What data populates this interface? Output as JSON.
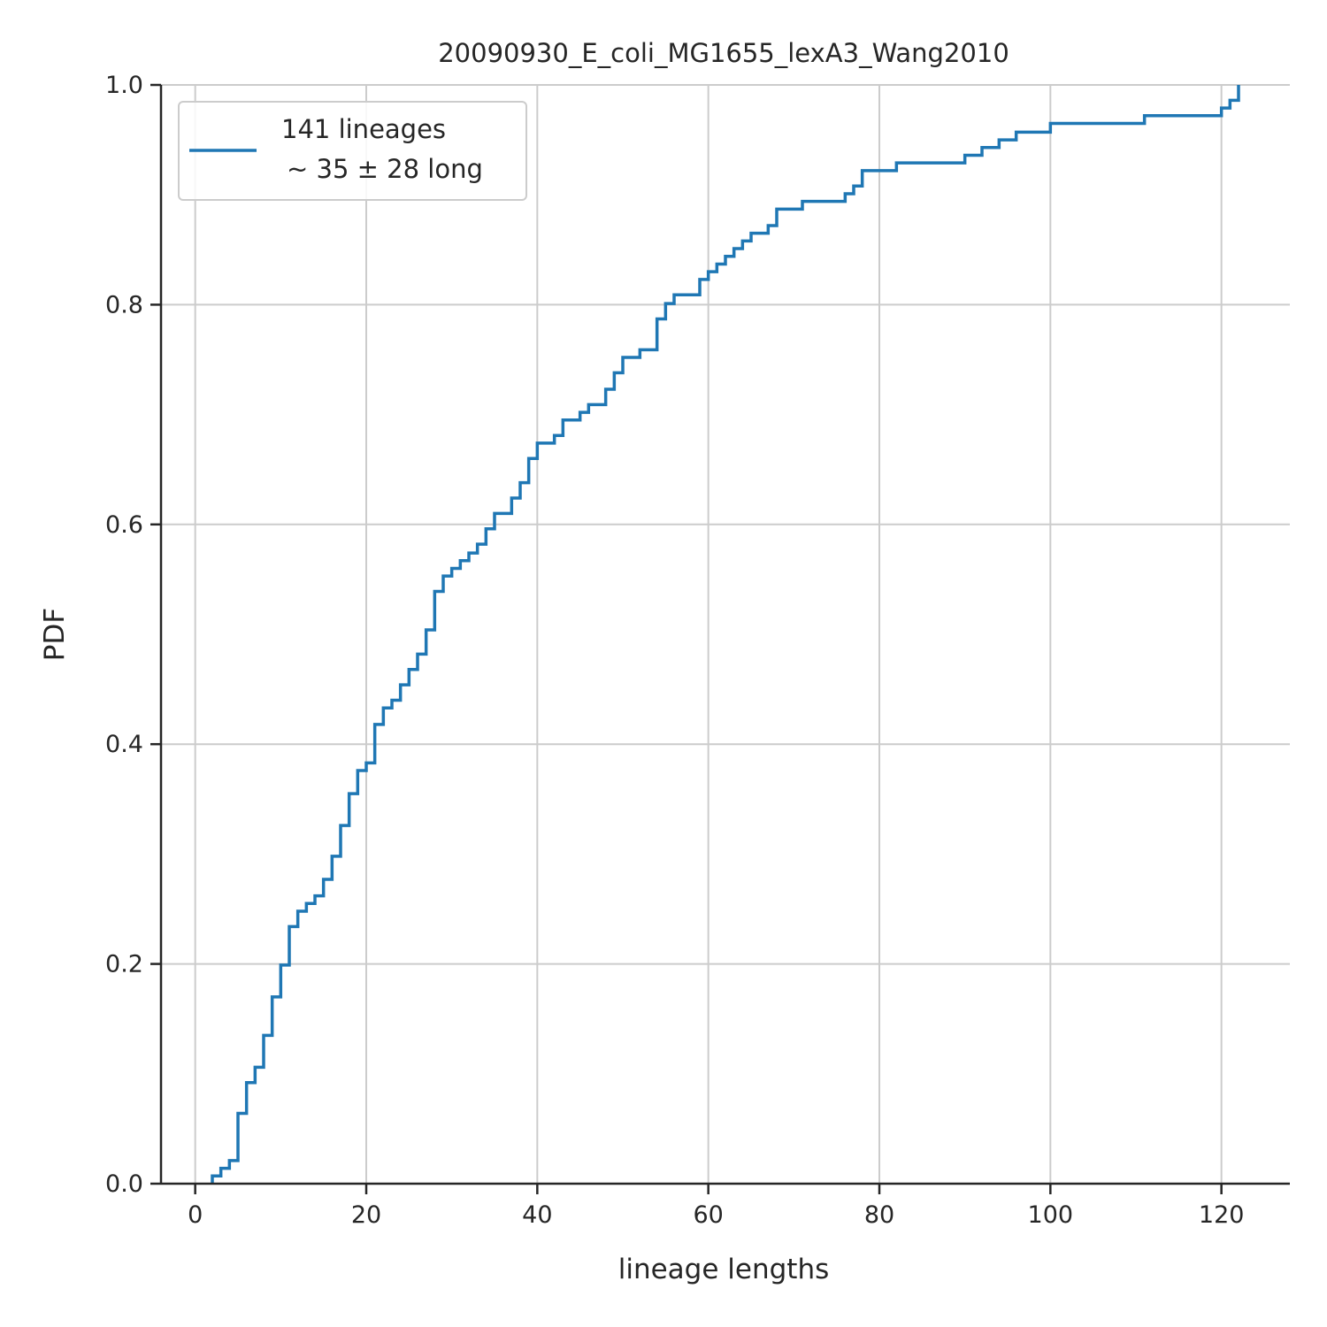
{
  "chart_data": {
    "type": "line",
    "title": "20090930_E_coli_MG1655_lexA3_Wang2010",
    "xlabel": "lineage lengths",
    "ylabel": "PDF",
    "xlim": [
      -4,
      128
    ],
    "ylim": [
      0,
      1.0
    ],
    "xticks": [
      0,
      20,
      40,
      60,
      80,
      100,
      120
    ],
    "yticks": [
      0.0,
      0.2,
      0.4,
      0.6,
      0.8,
      1.0
    ],
    "xtick_labels": [
      "0",
      "20",
      "40",
      "60",
      "80",
      "100",
      "120"
    ],
    "ytick_labels": [
      "0.0",
      "0.2",
      "0.4",
      "0.6",
      "0.8",
      "1.0"
    ],
    "grid": true,
    "legend_position": "upper-left",
    "series": [
      {
        "name": "141 lineages",
        "name_line2": "~ 35 ± 28 long",
        "color": "#1f77b4",
        "drawstyle": "steps-post",
        "x": [
          2,
          3,
          4,
          5,
          6,
          7,
          8,
          9,
          10,
          11,
          12,
          13,
          14,
          15,
          16,
          17,
          18,
          19,
          20,
          21,
          22,
          23,
          24,
          25,
          26,
          27,
          28,
          29,
          30,
          31,
          32,
          33,
          34,
          35,
          36,
          37,
          38,
          39,
          40,
          42,
          43,
          45,
          46,
          47,
          48,
          49,
          50,
          52,
          54,
          55,
          56,
          58,
          59,
          60,
          61,
          62,
          63,
          64,
          65,
          66,
          67,
          68,
          70,
          71,
          73,
          76,
          77,
          78,
          82,
          90,
          92,
          94,
          96,
          100,
          111,
          120,
          121,
          122
        ],
        "y": [
          0.007,
          0.014,
          0.021,
          0.064,
          0.092,
          0.106,
          0.135,
          0.17,
          0.199,
          0.234,
          0.248,
          0.255,
          0.262,
          0.277,
          0.298,
          0.326,
          0.355,
          0.376,
          0.383,
          0.418,
          0.433,
          0.44,
          0.454,
          0.468,
          0.482,
          0.504,
          0.539,
          0.553,
          0.56,
          0.567,
          0.574,
          0.582,
          0.596,
          0.61,
          0.61,
          0.624,
          0.638,
          0.66,
          0.674,
          0.681,
          0.695,
          0.702,
          0.709,
          0.709,
          0.723,
          0.738,
          0.752,
          0.759,
          0.787,
          0.801,
          0.809,
          0.809,
          0.823,
          0.83,
          0.837,
          0.844,
          0.851,
          0.858,
          0.865,
          0.865,
          0.872,
          0.887,
          0.887,
          0.894,
          0.894,
          0.901,
          0.908,
          0.922,
          0.929,
          0.936,
          0.943,
          0.95,
          0.957,
          0.965,
          0.972,
          0.979,
          0.986,
          1.0
        ]
      }
    ]
  }
}
